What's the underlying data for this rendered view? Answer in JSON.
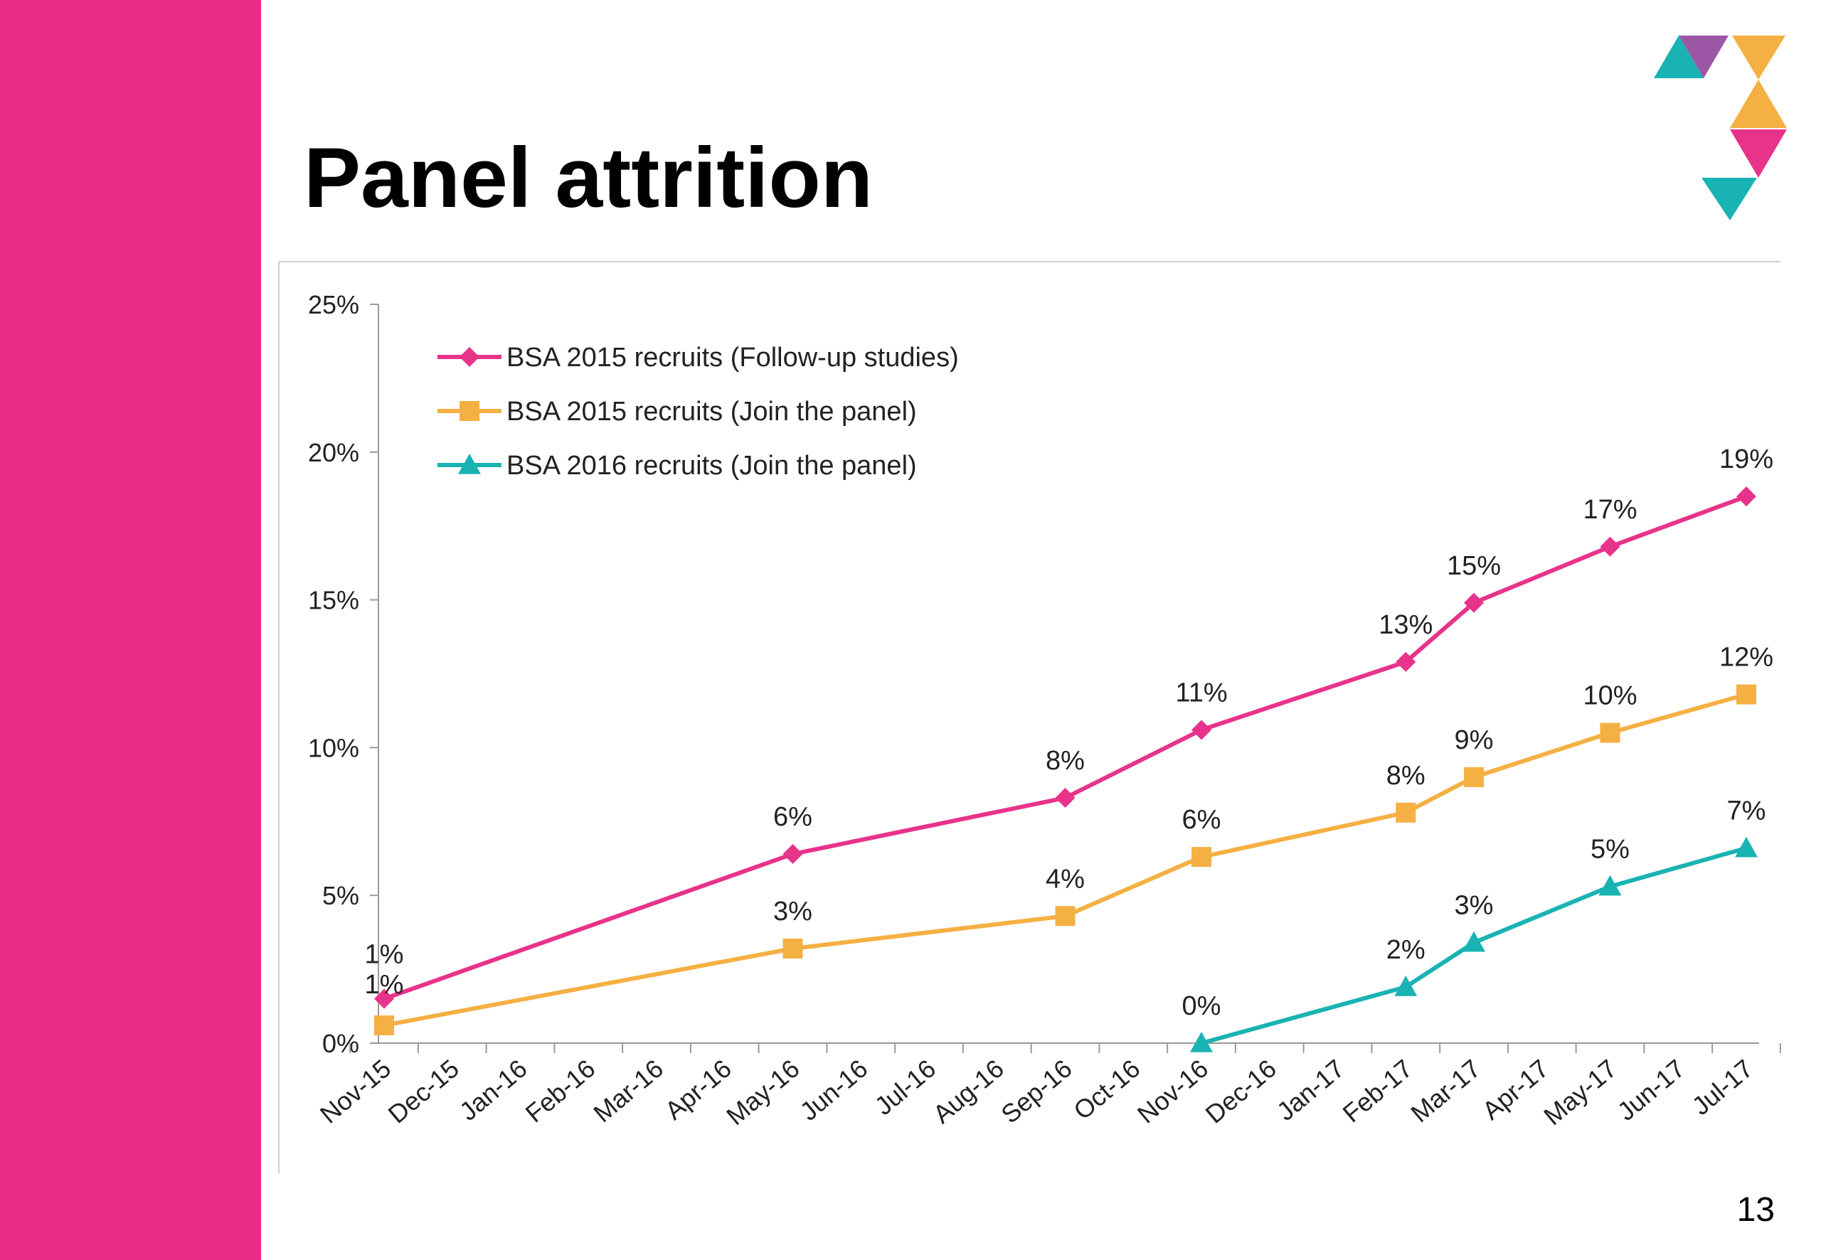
{
  "slide": {
    "title": "Panel attrition",
    "page_number": "13",
    "colors": {
      "band": "#ea2c89",
      "pink": "#e8338a",
      "orange": "#f5b043",
      "teal": "#1ab3b3",
      "purple": "#9b57a6"
    }
  },
  "chart_data": {
    "type": "line",
    "title": "",
    "xlabel": "",
    "ylabel": "",
    "categories": [
      "Nov-15",
      "Dec-15",
      "Jan-16",
      "Feb-16",
      "Mar-16",
      "Apr-16",
      "May-16",
      "Jun-16",
      "Jul-16",
      "Aug-16",
      "Sep-16",
      "Oct-16",
      "Nov-16",
      "Dec-16",
      "Jan-17",
      "Feb-17",
      "Mar-17",
      "Apr-17",
      "May-17",
      "Jun-17",
      "Jul-17"
    ],
    "y_ticks": [
      "0%",
      "5%",
      "10%",
      "15%",
      "20%",
      "25%"
    ],
    "ylim": [
      0,
      25
    ],
    "grid": false,
    "legend_position": "top-left",
    "series": [
      {
        "name": "BSA 2015 recruits (Follow-up studies)",
        "color": "#e8338a",
        "marker": "diamond",
        "points": [
          {
            "x": "Nov-15",
            "y": 1.5,
            "label": "1%"
          },
          {
            "x": "May-16",
            "y": 6.4,
            "label": "6%"
          },
          {
            "x": "Sep-16",
            "y": 8.3,
            "label": "8%"
          },
          {
            "x": "Nov-16",
            "y": 10.6,
            "label": "11%"
          },
          {
            "x": "Feb-17",
            "y": 12.9,
            "label": "13%"
          },
          {
            "x": "Mar-17",
            "y": 14.9,
            "label": "15%"
          },
          {
            "x": "May-17",
            "y": 16.8,
            "label": "17%"
          },
          {
            "x": "Jul-17",
            "y": 18.5,
            "label": "19%"
          }
        ]
      },
      {
        "name": "BSA 2015 recruits (Join the panel)",
        "color": "#f5b043",
        "marker": "square",
        "points": [
          {
            "x": "Nov-15",
            "y": 0.6,
            "label": "1%"
          },
          {
            "x": "May-16",
            "y": 3.2,
            "label": "3%"
          },
          {
            "x": "Sep-16",
            "y": 4.3,
            "label": "4%"
          },
          {
            "x": "Nov-16",
            "y": 6.3,
            "label": "6%"
          },
          {
            "x": "Feb-17",
            "y": 7.8,
            "label": "8%"
          },
          {
            "x": "Mar-17",
            "y": 9.0,
            "label": "9%"
          },
          {
            "x": "May-17",
            "y": 10.5,
            "label": "10%"
          },
          {
            "x": "Jul-17",
            "y": 11.8,
            "label": "12%"
          }
        ]
      },
      {
        "name": "BSA 2016 recruits (Join the panel)",
        "color": "#1ab3b3",
        "marker": "triangle",
        "points": [
          {
            "x": "Nov-16",
            "y": 0.0,
            "label": "0%"
          },
          {
            "x": "Feb-17",
            "y": 1.9,
            "label": "2%"
          },
          {
            "x": "Mar-17",
            "y": 3.4,
            "label": "3%"
          },
          {
            "x": "May-17",
            "y": 5.3,
            "label": "5%"
          },
          {
            "x": "Jul-17",
            "y": 6.6,
            "label": "7%"
          }
        ]
      }
    ]
  }
}
